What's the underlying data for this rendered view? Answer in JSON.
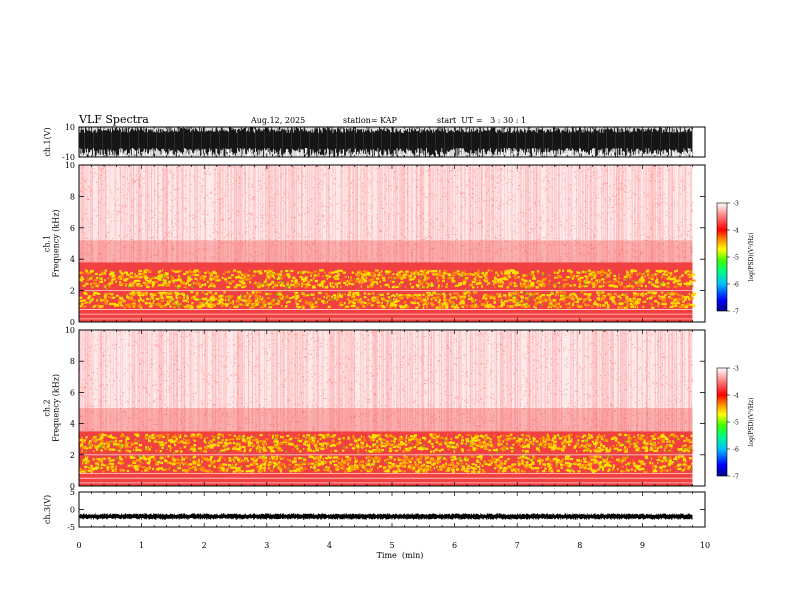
{
  "header": {
    "title": "VLF Spectra",
    "date": "Aug.12, 2025",
    "station": "station= KAP",
    "start": "start  UT =   3 : 30 : 1"
  },
  "chart_data": [
    {
      "type": "line",
      "panel": "ch1-waveform",
      "ylabel": "ch.1(V)",
      "ylim": [
        -10,
        10
      ],
      "yticks": [
        "10",
        "-10"
      ],
      "description_values": "dense broadband waveform, amplitude mostly between -10 and 10 V (clipped)"
    },
    {
      "type": "heatmap",
      "panel": "ch1-spectrogram",
      "ylabel": "ch.1\nFrequency  (kHz)",
      "ylim": [
        0,
        10
      ],
      "yticks": [
        "0",
        "2",
        "4",
        "6",
        "8",
        "10"
      ],
      "bands": [
        {
          "from_khz": 0,
          "to_khz": 3.8,
          "level": "high"
        },
        {
          "from_khz": 3.8,
          "to_khz": 5.2,
          "level": "medium"
        },
        {
          "from_khz": 5.2,
          "to_khz": 10,
          "level": "low"
        }
      ],
      "colorbar": {
        "label": "log(PSD)(V²/Hz)",
        "min": -7,
        "max": -3,
        "ticks": [
          "-3",
          "-4",
          "-5",
          "-6",
          "-7"
        ]
      }
    },
    {
      "type": "heatmap",
      "panel": "ch2-spectrogram",
      "ylabel": "ch.2\nFrequency  (kHz)",
      "ylim": [
        0,
        10
      ],
      "yticks": [
        "0",
        "2",
        "4",
        "6",
        "8",
        "10"
      ],
      "bands": [
        {
          "from_khz": 0,
          "to_khz": 3.5,
          "level": "high"
        },
        {
          "from_khz": 3.5,
          "to_khz": 5.0,
          "level": "medium"
        },
        {
          "from_khz": 5.0,
          "to_khz": 10,
          "level": "low"
        }
      ],
      "colorbar": {
        "label": "log(PSD)(V²/Hz)",
        "min": -7,
        "max": -3,
        "ticks": [
          "-3",
          "-4",
          "-5",
          "-6",
          "-7"
        ]
      }
    },
    {
      "type": "line",
      "panel": "ch3-waveform",
      "ylabel": "ch.3(V)",
      "ylim": [
        -5,
        5
      ],
      "yticks": [
        "5",
        "0",
        "-5"
      ],
      "description_values": "near-constant noisy trace around -2 V"
    }
  ],
  "xaxis": {
    "label": "Time  (min)",
    "xlim": [
      0,
      10
    ],
    "data_end_min": 9.8,
    "ticks": [
      "0",
      "1",
      "2",
      "3",
      "4",
      "5",
      "6",
      "7",
      "8",
      "9",
      "10"
    ]
  },
  "colors": {
    "colorbar_stops": [
      "#000080",
      "#0000ff",
      "#00c0ff",
      "#00ff80",
      "#40ff00",
      "#ffff00",
      "#ff8000",
      "#ff0000",
      "#ff8080",
      "#ffffff"
    ]
  }
}
